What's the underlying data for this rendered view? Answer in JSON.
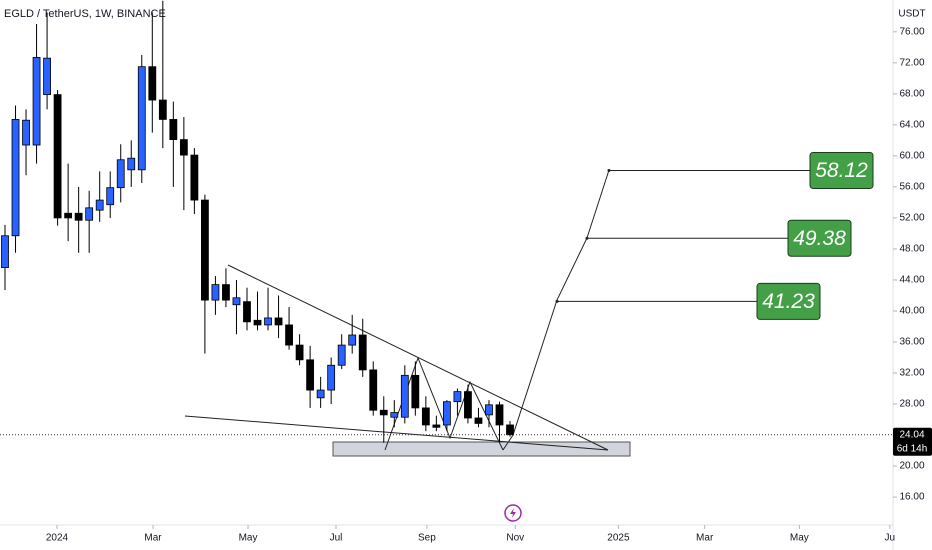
{
  "chart_data": {
    "type": "candlestick",
    "title": "EGLD / TetherUS, 1W, BINANCE",
    "currency": "USDT",
    "x": [
      0,
      1,
      2,
      3,
      4,
      5,
      6,
      7,
      8,
      9,
      10,
      11,
      12,
      13,
      14,
      15,
      16,
      17,
      18,
      19,
      20,
      21,
      22,
      23,
      24,
      25,
      26,
      27,
      28,
      29,
      30,
      31,
      32,
      33,
      34,
      35,
      36,
      37,
      38,
      39,
      40,
      41,
      42,
      43,
      44,
      45,
      46,
      47,
      48
    ],
    "open": [
      45.6,
      49.7,
      61.4,
      61.4,
      67.9,
      67.9,
      52.6,
      52.6,
      51.7,
      53.0,
      53.7,
      55.9,
      58.2,
      58.2,
      71.5,
      67.2,
      64.7,
      62.1,
      60.1,
      54.3,
      41.4,
      43.4,
      40.8,
      41.2,
      38.8,
      38.2,
      39.1,
      38.2,
      35.6,
      33.7,
      28.8,
      29.8,
      33.0,
      35.6,
      36.9,
      32.4,
      27.2,
      26.3,
      26.3,
      31.7,
      27.5,
      25.3,
      25.3,
      28.3,
      29.6,
      26.2,
      26.6,
      27.9,
      25.3
    ],
    "high": [
      51.1,
      66.5,
      66.0,
      77.0,
      78.5,
      68.5,
      59.0,
      56.0,
      55.5,
      58.0,
      58.0,
      61.5,
      62.0,
      73.0,
      78.5,
      80.0,
      67.0,
      65.0,
      61.0,
      55.0,
      44.5,
      45.5,
      44.0,
      43.0,
      42.5,
      43.0,
      42.0,
      40.5,
      37.0,
      35.5,
      31.5,
      34.0,
      37.0,
      39.5,
      39.0,
      33.5,
      29.0,
      28.5,
      33.0,
      33.5,
      29.0,
      26.5,
      28.5,
      30.0,
      30.5,
      27.5,
      28.5,
      28.3,
      25.8
    ],
    "low": [
      42.7,
      47.5,
      57.5,
      59.0,
      66.0,
      51.0,
      49.0,
      47.5,
      47.5,
      51.5,
      52.0,
      54.0,
      56.0,
      56.5,
      63.0,
      61.0,
      56.0,
      53.0,
      52.5,
      34.5,
      39.5,
      40.5,
      37.0,
      37.5,
      37.5,
      37.5,
      36.5,
      35.0,
      33.0,
      27.5,
      27.5,
      28.0,
      32.5,
      34.5,
      31.5,
      26.5,
      23.0,
      25.0,
      25.5,
      26.5,
      24.5,
      24.5,
      24.5,
      26.5,
      25.5,
      25.0,
      25.0,
      23.0,
      23.8
    ],
    "close": [
      49.7,
      64.7,
      64.6,
      72.7,
      72.6,
      52.0,
      52.0,
      51.7,
      53.3,
      54.3,
      55.9,
      59.5,
      59.7,
      71.5,
      67.2,
      64.7,
      62.1,
      60.1,
      54.3,
      41.4,
      43.4,
      41.4,
      41.7,
      38.6,
      38.2,
      39.1,
      38.2,
      35.6,
      33.7,
      29.8,
      29.8,
      33.0,
      35.6,
      36.9,
      32.4,
      27.2,
      26.6,
      26.9,
      31.7,
      27.5,
      25.3,
      25.0,
      28.3,
      29.6,
      26.2,
      25.5,
      27.9,
      25.3,
      24.04
    ],
    "up_color": "#2962ff",
    "down_color": "#000000",
    "xlim": [
      -0.475,
      84.4
    ],
    "xticks": [
      {
        "value": 4.94,
        "label": "2024"
      },
      {
        "value": 14.07,
        "label": "Mar"
      },
      {
        "value": 23.1,
        "label": "May"
      },
      {
        "value": 31.46,
        "label": "Jul"
      },
      {
        "value": 40.1,
        "label": "Sep"
      },
      {
        "value": 48.5,
        "label": "Nov"
      },
      {
        "value": 58.3,
        "label": "2025"
      },
      {
        "value": 66.5,
        "label": "Mar"
      },
      {
        "value": 75.5,
        "label": "May"
      },
      {
        "value": 84.1,
        "label": "Ju"
      }
    ],
    "ylim": [
      12.4,
      80.1
    ],
    "yticks": [
      {
        "value": 16,
        "label": "16.00"
      },
      {
        "value": 20,
        "label": "20.00"
      },
      {
        "value": 28,
        "label": "28.00"
      },
      {
        "value": 32,
        "label": "32.00"
      },
      {
        "value": 36,
        "label": "36.00"
      },
      {
        "value": 40,
        "label": "40.00"
      },
      {
        "value": 44,
        "label": "44.00"
      },
      {
        "value": 48,
        "label": "48.00"
      },
      {
        "value": 52,
        "label": "52.00"
      },
      {
        "value": 56,
        "label": "56.00"
      },
      {
        "value": 60,
        "label": "60.00"
      },
      {
        "value": 64,
        "label": "64.00"
      },
      {
        "value": 68,
        "label": "68.00"
      },
      {
        "value": 72,
        "label": "72.00"
      },
      {
        "value": 76,
        "label": "76.00"
      }
    ],
    "last_price": 24.04,
    "countdown": "6d 14h",
    "targets": [
      58.12,
      49.38,
      41.23
    ],
    "target_color": "#43a047"
  }
}
